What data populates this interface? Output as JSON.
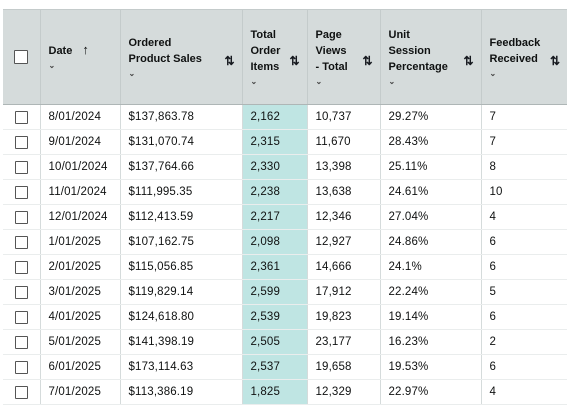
{
  "table": {
    "headers": {
      "date": "Date",
      "sales": "Ordered Product Sales",
      "items": "Total Order Items",
      "views": "Page Views - Total",
      "session": "Unit Session Percentage",
      "feedback": "Feedback Received"
    },
    "icons": {
      "sort": "sort-arrows-icon",
      "sort_ascending": "sort-ascending-arrow-icon",
      "chevron": "chevron-down-icon",
      "checkbox": "checkbox-icon"
    },
    "highlight_color": "#bfe5e3",
    "header_bg": "#d5dbdb",
    "rows": [
      {
        "date": "8/01/2024",
        "sales": "$137,863.78",
        "items": "2,162",
        "views": "10,737",
        "session": "29.27%",
        "feedback": "7"
      },
      {
        "date": "9/01/2024",
        "sales": "$131,070.74",
        "items": "2,315",
        "views": "11,670",
        "session": "28.43%",
        "feedback": "7"
      },
      {
        "date": "10/01/2024",
        "sales": "$137,764.66",
        "items": "2,330",
        "views": "13,398",
        "session": "25.11%",
        "feedback": "8"
      },
      {
        "date": "11/01/2024",
        "sales": "$111,995.35",
        "items": "2,238",
        "views": "13,638",
        "session": "24.61%",
        "feedback": "10"
      },
      {
        "date": "12/01/2024",
        "sales": "$112,413.59",
        "items": "2,217",
        "views": "12,346",
        "session": "27.04%",
        "feedback": "4"
      },
      {
        "date": "1/01/2025",
        "sales": "$107,162.75",
        "items": "2,098",
        "views": "12,927",
        "session": "24.86%",
        "feedback": "6"
      },
      {
        "date": "2/01/2025",
        "sales": "$115,056.85",
        "items": "2,361",
        "views": "14,666",
        "session": "24.1%",
        "feedback": "6"
      },
      {
        "date": "3/01/2025",
        "sales": "$119,829.14",
        "items": "2,599",
        "views": "17,912",
        "session": "22.24%",
        "feedback": "5"
      },
      {
        "date": "4/01/2025",
        "sales": "$124,618.80",
        "items": "2,539",
        "views": "19,823",
        "session": "19.14%",
        "feedback": "6"
      },
      {
        "date": "5/01/2025",
        "sales": "$141,398.19",
        "items": "2,505",
        "views": "23,177",
        "session": "16.23%",
        "feedback": "2"
      },
      {
        "date": "6/01/2025",
        "sales": "$173,114.63",
        "items": "2,537",
        "views": "19,658",
        "session": "19.53%",
        "feedback": "6"
      },
      {
        "date": "7/01/2025",
        "sales": "$113,386.19",
        "items": "1,825",
        "views": "12,329",
        "session": "22.97%",
        "feedback": "4"
      }
    ]
  }
}
